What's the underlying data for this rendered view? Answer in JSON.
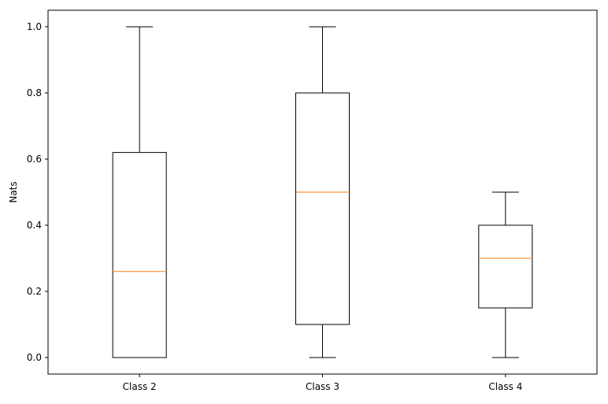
{
  "chart_data": {
    "type": "boxplot",
    "title": "",
    "xlabel": "",
    "ylabel": "Nats",
    "categories": [
      "Class 2",
      "Class 3",
      "Class 4"
    ],
    "boxes": [
      {
        "category": "Class 2",
        "whisker_low": 0.0,
        "q1": 0.0,
        "median": 0.26,
        "q3": 0.62,
        "whisker_high": 1.0
      },
      {
        "category": "Class 3",
        "whisker_low": 0.0,
        "q1": 0.1,
        "median": 0.5,
        "q3": 0.8,
        "whisker_high": 1.0
      },
      {
        "category": "Class 4",
        "whisker_low": 0.0,
        "q1": 0.15,
        "median": 0.3,
        "q3": 0.4,
        "whisker_high": 0.5
      }
    ],
    "ylim": [
      -0.05,
      1.05
    ],
    "yticks": [
      0.0,
      0.2,
      0.4,
      0.6,
      0.8,
      1.0
    ],
    "ytick_labels": [
      "0.0",
      "0.2",
      "0.4",
      "0.6",
      "0.8",
      "1.0"
    ],
    "grid": false,
    "legend": "none",
    "colors": {
      "box": "#000000",
      "median": "#ff7f0e",
      "axes": "#000000"
    }
  }
}
